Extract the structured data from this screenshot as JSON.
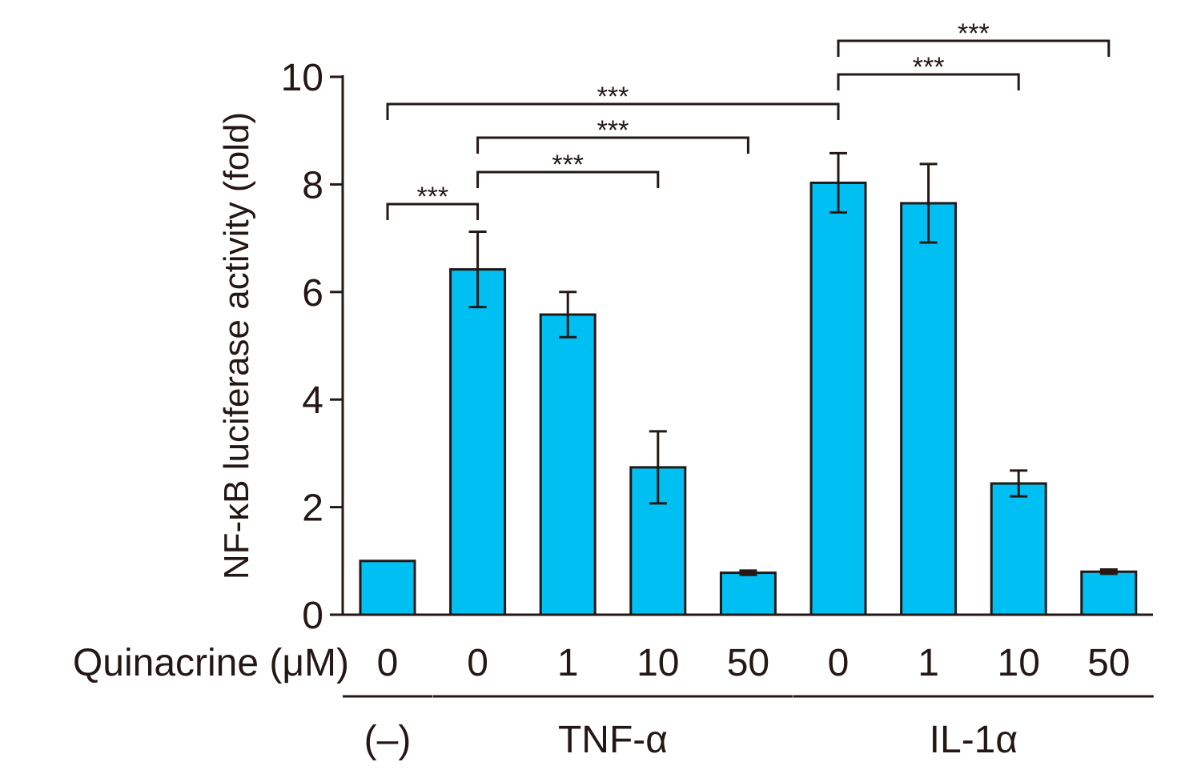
{
  "chart_data": {
    "type": "bar",
    "ylabel": "NF-κB luciferase activity (fold)",
    "ylim": [
      0,
      10
    ],
    "yticks": [
      0,
      2,
      4,
      6,
      8,
      10
    ],
    "x_row_label": "Quinacrine (μM)",
    "categories": [
      "0",
      "0",
      "1",
      "10",
      "50",
      "0",
      "1",
      "10",
      "50"
    ],
    "values": [
      1.0,
      6.42,
      5.58,
      2.74,
      0.78,
      8.03,
      7.65,
      2.44,
      0.8
    ],
    "errors": [
      0,
      0.7,
      0.42,
      0.67,
      0.04,
      0.55,
      0.73,
      0.24,
      0.04
    ],
    "groups": [
      {
        "label": "(–)",
        "bars": [
          0,
          0
        ]
      },
      {
        "label": "TNF-α",
        "bars": [
          1,
          4
        ]
      },
      {
        "label": "IL-1α",
        "bars": [
          5,
          8
        ]
      }
    ],
    "significance": [
      {
        "from": 0,
        "to": 1,
        "label": "***"
      },
      {
        "from": 1,
        "to": 3,
        "label": "***"
      },
      {
        "from": 1,
        "to": 4,
        "label": "***"
      },
      {
        "from": 0,
        "to": 5,
        "label": "***"
      },
      {
        "from": 5,
        "to": 7,
        "label": "***"
      },
      {
        "from": 5,
        "to": 8,
        "label": "***"
      }
    ],
    "colors": {
      "bar": "#00bff3",
      "stroke": "#231815"
    }
  }
}
